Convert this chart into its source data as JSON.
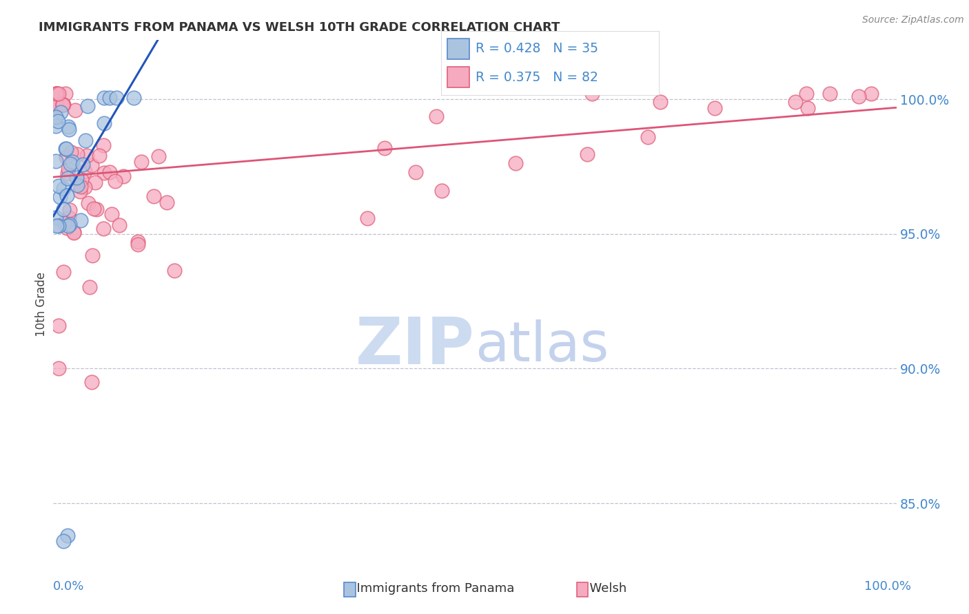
{
  "title": "IMMIGRANTS FROM PANAMA VS WELSH 10TH GRADE CORRELATION CHART",
  "source_text": "Source: ZipAtlas.com",
  "ylabel": "10th Grade",
  "legend_labels": [
    "Immigrants from Panama",
    "Welsh"
  ],
  "blue_R": 0.428,
  "blue_N": 35,
  "pink_R": 0.375,
  "pink_N": 82,
  "blue_color": "#aac4e0",
  "pink_color": "#f5aabf",
  "blue_edge_color": "#5588cc",
  "pink_edge_color": "#e0607a",
  "blue_line_color": "#2255bb",
  "pink_line_color": "#dd5577",
  "grid_color": "#c0c0d0",
  "title_color": "#333333",
  "axis_label_color": "#4488cc",
  "watermark_main": "#c8d8f0",
  "watermark_accent": "#b0c4e8",
  "ylim_min": 0.826,
  "ylim_max": 1.022,
  "yticks": [
    0.85,
    0.9,
    0.95,
    1.0
  ],
  "ytick_labels": [
    "85.0%",
    "90.0%",
    "95.0%",
    "100.0%"
  ]
}
